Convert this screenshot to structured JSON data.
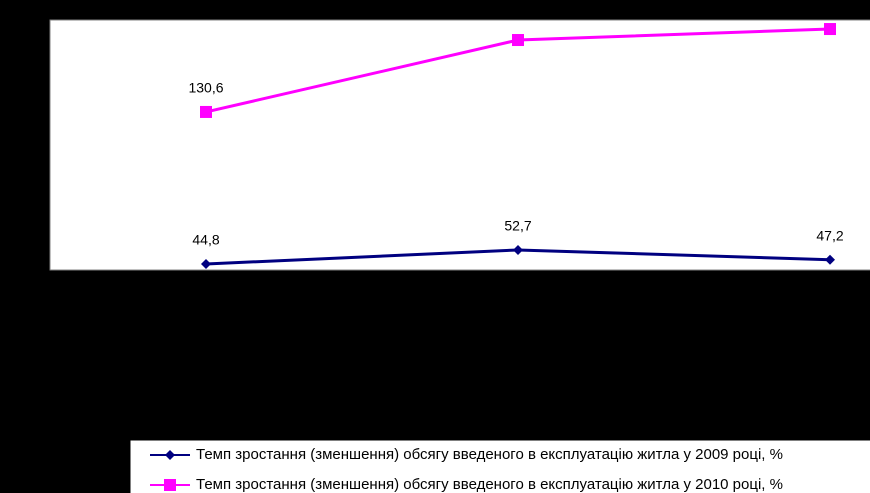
{
  "chart_data": {
    "type": "line",
    "categories": [
      null,
      null,
      null
    ],
    "ylim": [
      41.4,
      182.5
    ],
    "series": [
      {
        "name": "Темп зростання (зменшення) обсягу введеного  в експлуатацію житла у 2009 році, %",
        "color": "#000080",
        "marker": "diamond",
        "values": [
          44.8,
          52.7,
          47.2
        ],
        "value_labels": [
          "44,8",
          "52,7",
          "47,2"
        ]
      },
      {
        "name": "Темп зростання (зменшення) обсягу введеного  в експлуатацію житла у 2010 році, %",
        "color": "#ff00ff",
        "marker": "square",
        "values": [
          130.6,
          171.2,
          177.4
        ],
        "value_labels": [
          "130,6",
          null,
          null
        ]
      }
    ]
  }
}
